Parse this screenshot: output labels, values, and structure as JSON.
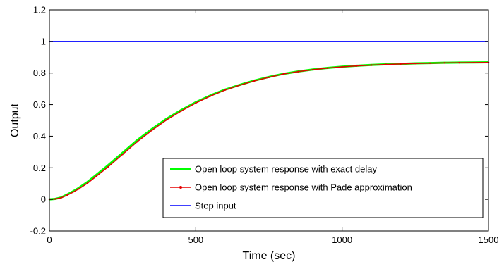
{
  "chart_data": {
    "type": "line",
    "title": "",
    "xlabel": "Time (sec)",
    "ylabel": "Output",
    "xlim": [
      0,
      1500
    ],
    "ylim": [
      -0.2,
      1.2
    ],
    "xticks": [
      0,
      500,
      1000,
      1500
    ],
    "xtick_labels": [
      "0",
      "500",
      "1000",
      "1500"
    ],
    "yticks": [
      -0.2,
      0,
      0.2,
      0.4,
      0.6,
      0.8,
      1,
      1.2
    ],
    "ytick_labels": [
      "-0.2",
      "0",
      "0.2",
      "0.4",
      "0.6",
      "0.8",
      "1",
      "1.2"
    ],
    "grid": false,
    "legend_position": "bottom-right",
    "series": [
      {
        "name": "Open loop system response with exact delay",
        "color": "#00ff00",
        "marker": "none",
        "x": [
          0,
          20,
          40,
          60,
          80,
          100,
          130,
          160,
          200,
          250,
          300,
          350,
          400,
          450,
          500,
          550,
          600,
          650,
          700,
          750,
          800,
          850,
          900,
          950,
          1000,
          1050,
          1100,
          1150,
          1200,
          1250,
          1300,
          1350,
          1400,
          1450,
          1500
        ],
        "y": [
          0.0,
          0.003,
          0.012,
          0.03,
          0.05,
          0.072,
          0.11,
          0.155,
          0.215,
          0.295,
          0.375,
          0.445,
          0.51,
          0.565,
          0.615,
          0.658,
          0.695,
          0.725,
          0.752,
          0.775,
          0.795,
          0.81,
          0.822,
          0.832,
          0.84,
          0.846,
          0.851,
          0.855,
          0.858,
          0.861,
          0.863,
          0.865,
          0.866,
          0.867,
          0.868
        ]
      },
      {
        "name": "Open loop system response with Pade approximation",
        "color": "#e60000",
        "marker": "dot",
        "x": [
          0,
          20,
          40,
          60,
          80,
          100,
          130,
          160,
          200,
          250,
          300,
          350,
          400,
          450,
          500,
          550,
          600,
          650,
          700,
          750,
          800,
          850,
          900,
          950,
          1000,
          1050,
          1100,
          1150,
          1200,
          1250,
          1300,
          1350,
          1400,
          1450,
          1500
        ],
        "y": [
          0.0,
          0.003,
          0.01,
          0.026,
          0.045,
          0.066,
          0.102,
          0.146,
          0.205,
          0.285,
          0.365,
          0.437,
          0.503,
          0.559,
          0.61,
          0.654,
          0.692,
          0.723,
          0.75,
          0.773,
          0.794,
          0.809,
          0.821,
          0.831,
          0.839,
          0.845,
          0.85,
          0.854,
          0.857,
          0.86,
          0.862,
          0.864,
          0.865,
          0.866,
          0.867
        ]
      },
      {
        "name": "Step input",
        "color": "#0000ff",
        "marker": "none",
        "x": [
          0,
          1500
        ],
        "y": [
          1,
          1
        ]
      }
    ]
  }
}
